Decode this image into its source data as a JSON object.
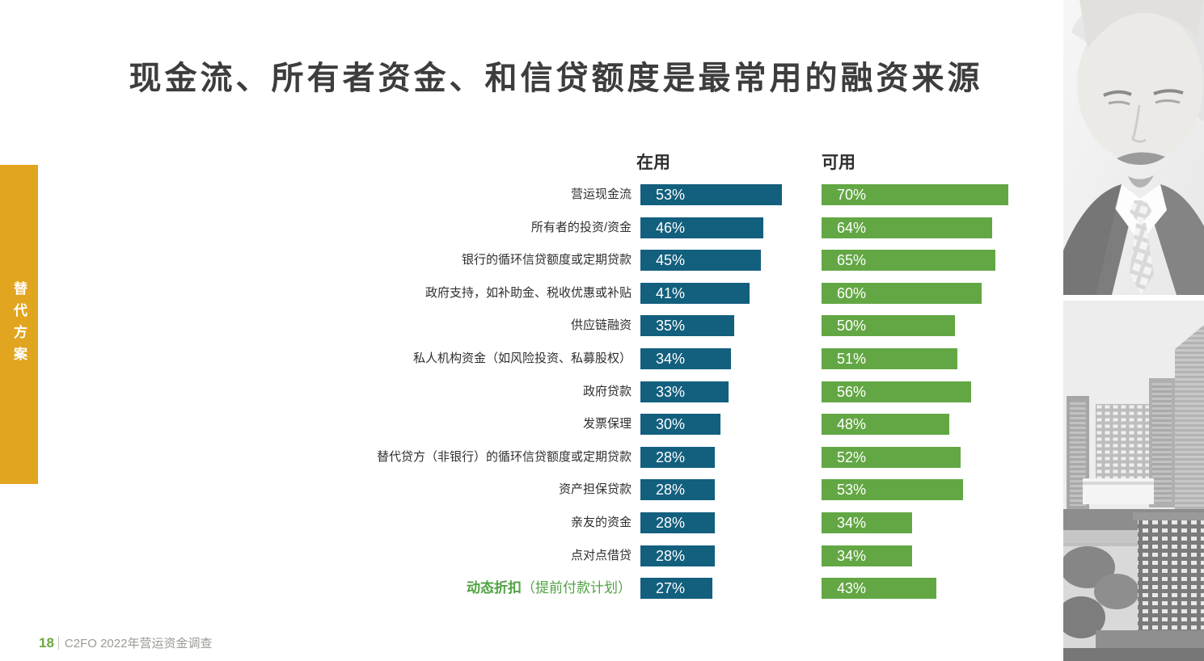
{
  "title": "现金流、所有者资金、和信贷额度是最常用的融资来源",
  "side_tab": {
    "label": "替代方案",
    "color": "#e2a51f"
  },
  "footer": {
    "page_number": "18",
    "source": "C2FO 2022年营运资金调查"
  },
  "chart_data": {
    "type": "bar",
    "orientation": "horizontal",
    "value_suffix": "%",
    "xlim": [
      0,
      100
    ],
    "legend_position": "column headers above bars",
    "grid": false,
    "categories": [
      "营运现金流",
      "所有者的投资/资金",
      "银行的循环信贷额度或定期贷款",
      "政府支持，如补助金、税收优惠或补贴",
      "供应链融资",
      "私人机构资金（如风险投资、私募股权）",
      "政府贷款",
      "发票保理",
      "替代贷方（非银行）的循环信贷额度或定期贷款",
      "资产担保贷款",
      "亲友的资金",
      "点对点借贷",
      "动态折扣（提前付款计划）"
    ],
    "series": [
      {
        "name": "在用",
        "color": "#135f7e",
        "values": [
          53,
          46,
          45,
          41,
          35,
          34,
          33,
          30,
          28,
          28,
          28,
          28,
          27
        ]
      },
      {
        "name": "可用",
        "color": "#63a744",
        "values": [
          70,
          64,
          65,
          60,
          50,
          51,
          56,
          48,
          52,
          53,
          34,
          34,
          43
        ]
      }
    ],
    "highlight_last": {
      "bold": "动态折扣",
      "rest": "（提前付款计划）",
      "color": "#4fa242"
    }
  }
}
